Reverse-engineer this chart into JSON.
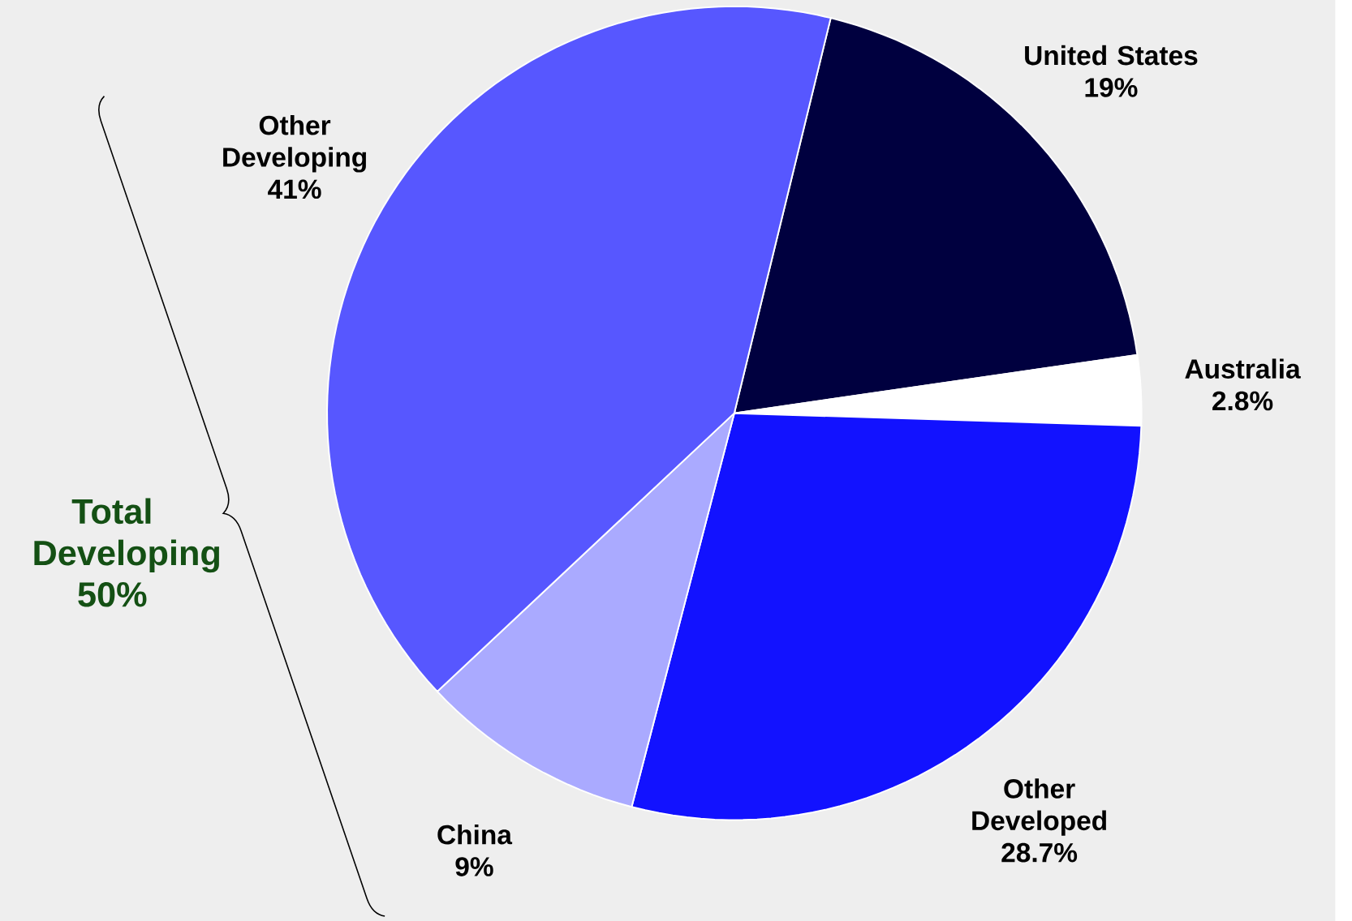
{
  "chart_data": {
    "type": "pie",
    "categories": [
      "United States",
      "Australia",
      "Other Developed",
      "China",
      "Other Developing"
    ],
    "values": [
      19,
      2.8,
      28.7,
      9,
      41
    ],
    "value_labels": [
      "19%",
      "2.8%",
      "28.7%",
      "9%",
      "41%"
    ],
    "colors": [
      "#00003f",
      "#ffffff",
      "#1212ff",
      "#aaaaff",
      "#5757ff"
    ],
    "annotations": [
      "Total Developing 50%"
    ]
  }
}
